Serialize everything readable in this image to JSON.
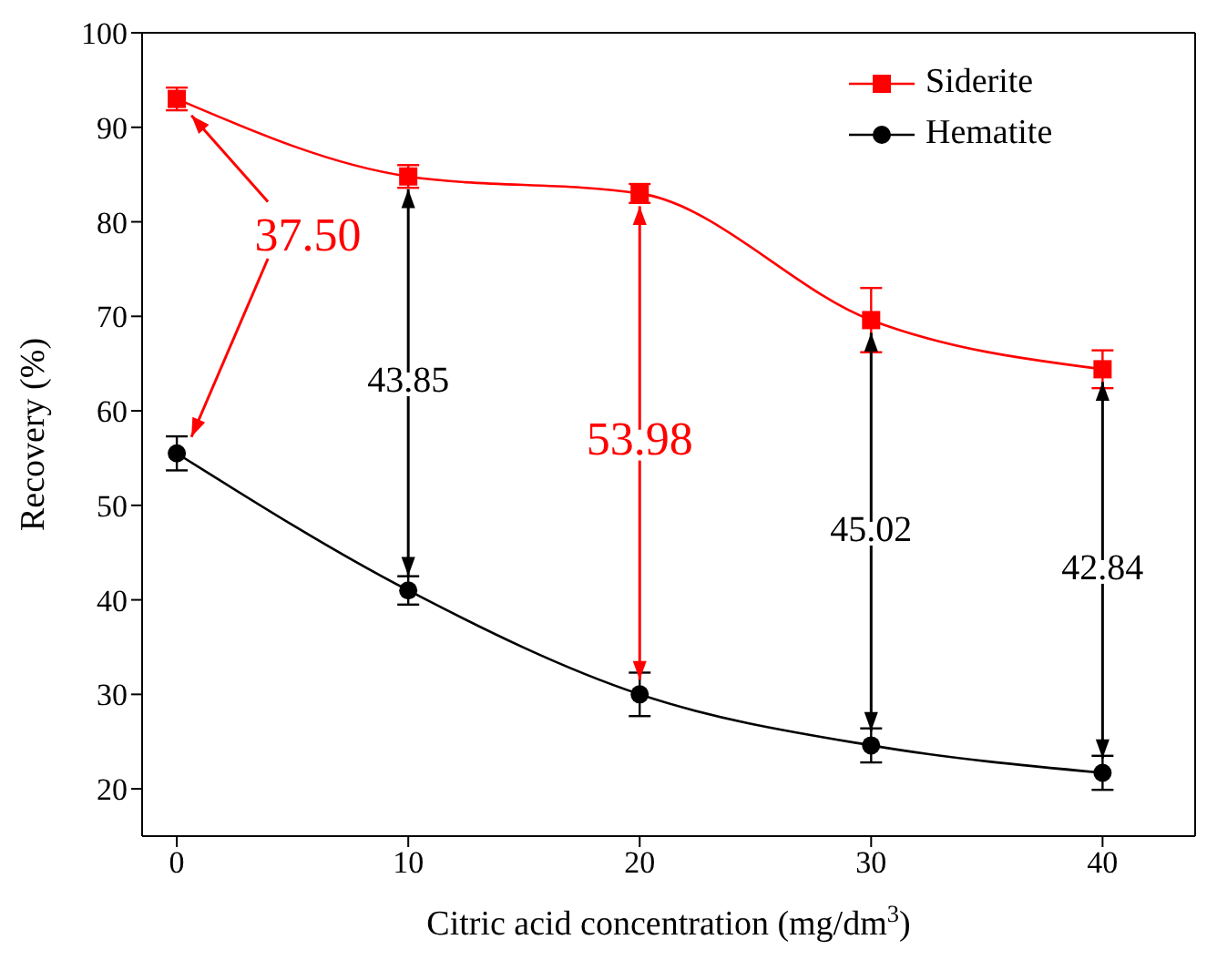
{
  "chart_data": {
    "type": "line",
    "xlabel": "Citric acid concentration (mg/dm$^{3}$)",
    "ylabel": "Recovery (%)",
    "x": [
      0,
      10,
      20,
      30,
      40
    ],
    "series": [
      {
        "name": "Siderite",
        "color": "#ff0000",
        "marker": "square",
        "values": [
          93.0,
          84.8,
          83.0,
          69.6,
          64.4
        ],
        "errors": [
          1.2,
          1.2,
          1.0,
          3.4,
          2.0
        ]
      },
      {
        "name": "Hematite",
        "color": "#000000",
        "marker": "circle",
        "values": [
          55.5,
          41.0,
          30.0,
          24.6,
          21.7
        ],
        "errors": [
          1.8,
          1.5,
          2.3,
          1.8,
          1.8
        ]
      }
    ],
    "xlim": [
      -1.5,
      44
    ],
    "xticks": [
      0,
      10,
      20,
      30,
      40
    ],
    "ylim": [
      15,
      100
    ],
    "yticks": [
      20,
      30,
      40,
      50,
      60,
      70,
      80,
      90,
      100
    ],
    "grid": false,
    "legend": "top right",
    "line_style": "solid",
    "annotations": [
      {
        "text": "37.50",
        "x": 0,
        "y": 93.0
      },
      {
        "text": "43.85",
        "x": 10,
        "y": 84.8
      },
      {
        "text": "53.98",
        "x": 20,
        "y": 83.0
      },
      {
        "text": "45.02",
        "x": 30,
        "y": 69.6
      },
      {
        "text": "42.84",
        "x": 40,
        "y": 64.4
      }
    ]
  }
}
